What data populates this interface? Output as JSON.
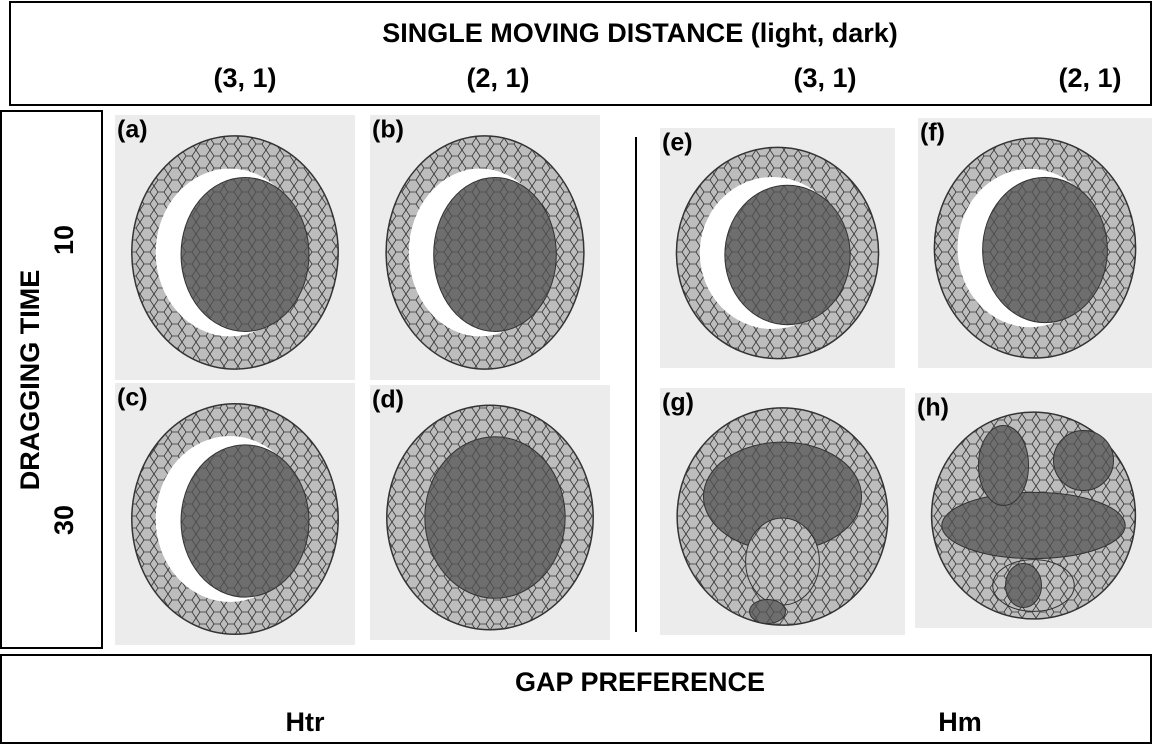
{
  "header": {
    "title": "SINGLE MOVING DISTANCE (light, dark)",
    "columns": [
      "(3, 1)",
      "(2, 1)",
      "(3, 1)",
      "(2, 1)"
    ]
  },
  "side": {
    "title": "DRAGGING TIME",
    "rows": [
      "10",
      "30"
    ]
  },
  "panels": [
    "(a)",
    "(b)",
    "(c)",
    "(d)",
    "(e)",
    "(f)",
    "(g)",
    "(h)"
  ],
  "footer": {
    "title": "GAP PREFERENCE",
    "groups": [
      "Htr",
      "Hm"
    ]
  }
}
